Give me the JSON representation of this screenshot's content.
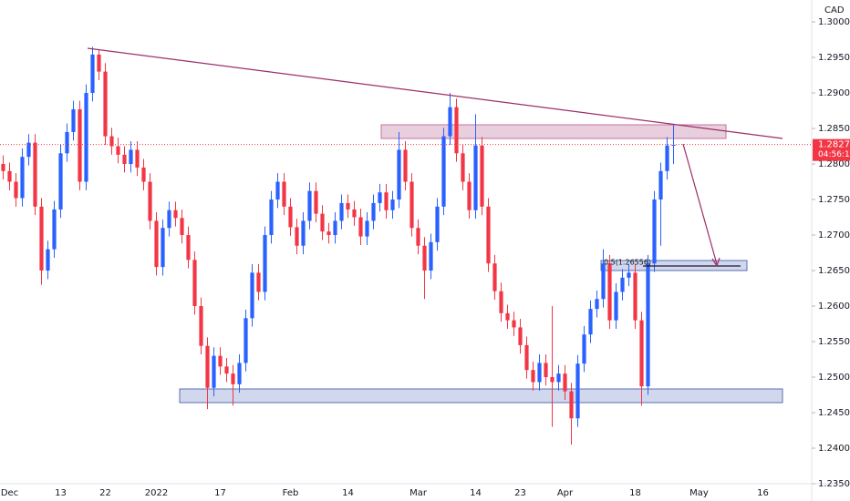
{
  "chart_data": {
    "type": "candlestick",
    "currency": "CAD",
    "categories": [
      null,
      "Dec",
      null,
      null,
      null,
      null,
      null,
      null,
      null,
      "13",
      null,
      null,
      null,
      null,
      null,
      null,
      "22",
      null,
      null,
      null,
      null,
      null,
      null,
      null,
      "2022",
      null,
      null,
      null,
      null,
      null,
      null,
      null,
      null,
      null,
      "17",
      null,
      null,
      null,
      null,
      null,
      null,
      null,
      null,
      null,
      null,
      "Feb",
      null,
      null,
      null,
      null,
      null,
      null,
      null,
      null,
      "14",
      null,
      null,
      null,
      null,
      null,
      null,
      null,
      null,
      null,
      null,
      "Mar",
      null,
      null,
      null,
      null,
      null,
      null,
      null,
      null,
      "14",
      null,
      null,
      null,
      null,
      null,
      null,
      "23",
      null,
      null,
      null,
      null,
      null,
      null,
      "Apr",
      null,
      null,
      null,
      null,
      null,
      null,
      null,
      null,
      null,
      null,
      "18",
      null,
      null,
      null,
      null,
      null,
      null,
      null,
      null,
      null,
      "May",
      null,
      null,
      null,
      null,
      null,
      null,
      null,
      null,
      null,
      "16",
      null,
      null,
      null,
      null,
      null,
      null,
      null
    ],
    "open": [
      1.28,
      1.279,
      1.2775,
      1.2752,
      1.281,
      1.283,
      1.274,
      1.265,
      1.268,
      1.2736,
      1.2815,
      1.2845,
      1.2877,
      1.2775,
      1.29,
      1.2954,
      1.293,
      1.2839,
      1.2825,
      1.2813,
      1.28,
      1.282,
      1.2795,
      1.2775,
      1.272,
      1.2655,
      1.271,
      1.2735,
      1.2724,
      1.27,
      1.2665,
      1.26,
      1.2544,
      1.2485,
      1.253,
      1.2515,
      1.2505,
      1.249,
      1.252,
      1.2583,
      1.2647,
      1.262,
      1.27,
      1.275,
      1.2775,
      1.274,
      1.2711,
      1.2685,
      1.272,
      1.2762,
      1.273,
      1.2705,
      1.27,
      1.272,
      1.2745,
      1.2736,
      1.2725,
      1.2698,
      1.272,
      1.2745,
      1.276,
      1.2735,
      1.275,
      1.282,
      1.2775,
      1.271,
      1.2685,
      1.265,
      1.269,
      1.274,
      1.2839,
      1.288,
      1.2815,
      1.2775,
      1.2735,
      1.2826,
      1.274,
      1.266,
      1.2621,
      1.259,
      1.258,
      1.257,
      1.2545,
      1.251,
      1.2493,
      1.252,
      1.25,
      1.2493,
      1.2505,
      1.248,
      1.2442,
      1.2519,
      1.256,
      1.2596,
      1.261,
      1.266,
      1.258,
      1.262,
      1.264,
      1.2647,
      1.258,
      1.2487,
      1.266,
      1.275,
      1.279,
      1.2826,
      null,
      null,
      null,
      null,
      null,
      null,
      null,
      null,
      null,
      null,
      null,
      null,
      null,
      null,
      null,
      null,
      null,
      null,
      null,
      null,
      null
    ],
    "high": [
      1.2812,
      1.2802,
      1.2787,
      1.2822,
      1.2842,
      1.2842,
      1.2752,
      1.2692,
      1.2748,
      1.2827,
      1.2857,
      1.2889,
      1.2889,
      1.2912,
      1.2965,
      1.296,
      1.2942,
      1.2851,
      1.2837,
      1.2825,
      1.2832,
      1.2832,
      1.2807,
      1.2787,
      1.2732,
      1.2722,
      1.2747,
      1.2747,
      1.2736,
      1.2712,
      1.2677,
      1.2612,
      1.2556,
      1.2542,
      1.2542,
      1.2527,
      1.2517,
      1.2532,
      1.2595,
      1.2659,
      1.2659,
      1.2712,
      1.2762,
      1.2787,
      1.2787,
      1.2752,
      1.2723,
      1.2732,
      1.2774,
      1.2774,
      1.2742,
      1.2717,
      1.2732,
      1.2757,
      1.2757,
      1.2748,
      1.2737,
      1.2732,
      1.2757,
      1.2772,
      1.2772,
      1.2762,
      1.2845,
      1.2832,
      1.2787,
      1.2722,
      1.2697,
      1.2702,
      1.2752,
      1.2851,
      1.29,
      1.2892,
      1.2827,
      1.2787,
      1.287,
      1.2838,
      1.2752,
      1.2672,
      1.2633,
      1.2602,
      1.2592,
      1.2582,
      1.2557,
      1.2522,
      1.2532,
      1.2532,
      1.26,
      1.2517,
      1.2517,
      1.2492,
      1.2531,
      1.2572,
      1.2608,
      1.2622,
      1.268,
      1.2672,
      1.2632,
      1.2652,
      1.2659,
      1.2659,
      1.2592,
      1.2672,
      1.2762,
      1.2802,
      1.2838,
      1.2855,
      null,
      null,
      null,
      null,
      null,
      null,
      null,
      null,
      null,
      null,
      null,
      null,
      null,
      null,
      null,
      null,
      null,
      null,
      null,
      null,
      null
    ],
    "low": [
      1.2778,
      1.2763,
      1.274,
      1.274,
      1.2798,
      1.2728,
      1.263,
      1.2638,
      1.2668,
      1.2724,
      1.2803,
      1.2833,
      1.2763,
      1.2763,
      1.2888,
      1.2918,
      1.2827,
      1.2813,
      1.2801,
      1.2788,
      1.2788,
      1.2783,
      1.2763,
      1.2708,
      1.2643,
      1.2643,
      1.2698,
      1.2712,
      1.2688,
      1.2653,
      1.2588,
      1.2532,
      1.2455,
      1.2473,
      1.2503,
      1.2493,
      1.246,
      1.2478,
      1.2508,
      1.2571,
      1.2608,
      1.2608,
      1.2688,
      1.2738,
      1.2728,
      1.2699,
      1.2673,
      1.2673,
      1.2708,
      1.2718,
      1.2693,
      1.2688,
      1.2688,
      1.2708,
      1.2724,
      1.2713,
      1.2686,
      1.2686,
      1.2708,
      1.2733,
      1.2723,
      1.2723,
      1.2738,
      1.2763,
      1.2698,
      1.2673,
      1.261,
      1.2638,
      1.2678,
      1.2728,
      1.2827,
      1.2803,
      1.2763,
      1.2723,
      1.2723,
      1.2728,
      1.2648,
      1.2609,
      1.2578,
      1.2568,
      1.2558,
      1.2533,
      1.2498,
      1.2481,
      1.2481,
      1.2488,
      1.243,
      1.2481,
      1.2468,
      1.2405,
      1.243,
      1.2507,
      1.2548,
      1.2584,
      1.2598,
      1.2568,
      1.2568,
      1.2608,
      1.2628,
      1.2568,
      1.246,
      1.2475,
      1.2648,
      1.2685,
      1.2778,
      1.28,
      null,
      null,
      null,
      null,
      null,
      null,
      null,
      null,
      null,
      null,
      null,
      null,
      null,
      null,
      null,
      null,
      null,
      null,
      null,
      null,
      null
    ],
    "close": [
      1.279,
      1.2775,
      1.2752,
      1.281,
      1.283,
      1.274,
      1.265,
      1.268,
      1.2736,
      1.2815,
      1.2845,
      1.2877,
      1.2775,
      1.29,
      1.2954,
      1.293,
      1.2839,
      1.2825,
      1.2813,
      1.28,
      1.282,
      1.2795,
      1.2775,
      1.272,
      1.2655,
      1.271,
      1.2735,
      1.2724,
      1.27,
      1.2665,
      1.26,
      1.2544,
      1.2485,
      1.253,
      1.2515,
      1.2505,
      1.249,
      1.252,
      1.2583,
      1.2647,
      1.262,
      1.27,
      1.275,
      1.2775,
      1.274,
      1.2711,
      1.2685,
      1.272,
      1.2762,
      1.273,
      1.2705,
      1.27,
      1.272,
      1.2745,
      1.2736,
      1.2725,
      1.2698,
      1.272,
      1.2745,
      1.276,
      1.2735,
      1.275,
      1.282,
      1.2775,
      1.271,
      1.2685,
      1.265,
      1.269,
      1.274,
      1.2839,
      1.288,
      1.2815,
      1.2775,
      1.2735,
      1.2826,
      1.274,
      1.266,
      1.2621,
      1.259,
      1.258,
      1.257,
      1.2545,
      1.251,
      1.2493,
      1.252,
      1.25,
      1.2493,
      1.2505,
      1.248,
      1.2442,
      1.2519,
      1.256,
      1.2596,
      1.261,
      1.266,
      1.258,
      1.262,
      1.264,
      1.2647,
      1.258,
      1.2487,
      1.266,
      1.275,
      1.279,
      1.2826,
      1.2827,
      null,
      null,
      null,
      null,
      null,
      null,
      null,
      null,
      null,
      null,
      null,
      null,
      null,
      null,
      null,
      null,
      null,
      null,
      null,
      null,
      null
    ],
    "up_color": "#2962ff",
    "down_color": "#f23645",
    "ylim": [
      1.23513,
      1.30308
    ],
    "yticks": [
      {
        "value": 1.3,
        "label": "1.30000"
      },
      {
        "value": 1.295,
        "label": "1.29500"
      },
      {
        "value": 1.29,
        "label": "1.29000"
      },
      {
        "value": 1.285,
        "label": "1.28500"
      },
      {
        "value": 1.28,
        "label": "1.28000"
      },
      {
        "value": 1.275,
        "label": "1.27500"
      },
      {
        "value": 1.27,
        "label": "1.27000"
      },
      {
        "value": 1.265,
        "label": "1.26500"
      },
      {
        "value": 1.26,
        "label": "1.26000"
      },
      {
        "value": 1.255,
        "label": "1.25500"
      },
      {
        "value": 1.25,
        "label": "1.25000"
      },
      {
        "value": 1.245,
        "label": "1.24500"
      },
      {
        "value": 1.24,
        "label": "1.24000"
      },
      {
        "value": 1.235,
        "label": "1.23500"
      }
    ],
    "grid": false,
    "last_price": 1.28274,
    "countdown": "04:56:17",
    "annotation": "0.5(1.26556)"
  }
}
